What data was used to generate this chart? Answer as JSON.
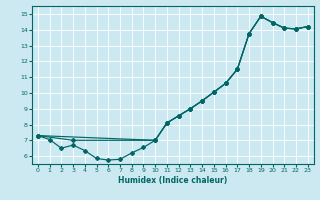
{
  "xlabel": "Humidex (Indice chaleur)",
  "bg_color": "#cce8f0",
  "line_color": "#006666",
  "grid_color": "#ffffff",
  "xlim": [
    -0.5,
    23.5
  ],
  "ylim": [
    5.5,
    15.5
  ],
  "xticks": [
    0,
    1,
    2,
    3,
    4,
    5,
    6,
    7,
    8,
    9,
    10,
    11,
    12,
    13,
    14,
    15,
    16,
    17,
    18,
    19,
    20,
    21,
    22,
    23
  ],
  "yticks": [
    6,
    7,
    8,
    9,
    10,
    11,
    12,
    13,
    14,
    15
  ],
  "line1_x": [
    0,
    1,
    2,
    3,
    4,
    5,
    6,
    7,
    8,
    9,
    10,
    11,
    12,
    13,
    14,
    15,
    16,
    17,
    18,
    19,
    20,
    21,
    22,
    23
  ],
  "line1_y": [
    7.3,
    7.05,
    6.5,
    6.7,
    6.35,
    5.85,
    5.75,
    5.8,
    6.2,
    6.55,
    7.0,
    8.1,
    8.55,
    9.0,
    9.5,
    10.05,
    10.6,
    11.5,
    13.75,
    14.85,
    14.45,
    14.1,
    14.05,
    14.2
  ],
  "line2_x": [
    0,
    10,
    11,
    12,
    13,
    14,
    15,
    16,
    17,
    18,
    19,
    20,
    21,
    22,
    23
  ],
  "line2_y": [
    7.3,
    7.0,
    8.1,
    8.55,
    9.0,
    9.5,
    10.05,
    10.6,
    11.5,
    13.75,
    14.85,
    14.45,
    14.1,
    14.05,
    14.2
  ],
  "line3_x": [
    0,
    3,
    10,
    11,
    12,
    13,
    14,
    15,
    16,
    17,
    18,
    19,
    20,
    21,
    22,
    23
  ],
  "line3_y": [
    7.3,
    7.0,
    7.0,
    8.1,
    8.55,
    9.0,
    9.5,
    10.05,
    10.6,
    11.5,
    13.75,
    14.85,
    14.45,
    14.1,
    14.05,
    14.2
  ]
}
